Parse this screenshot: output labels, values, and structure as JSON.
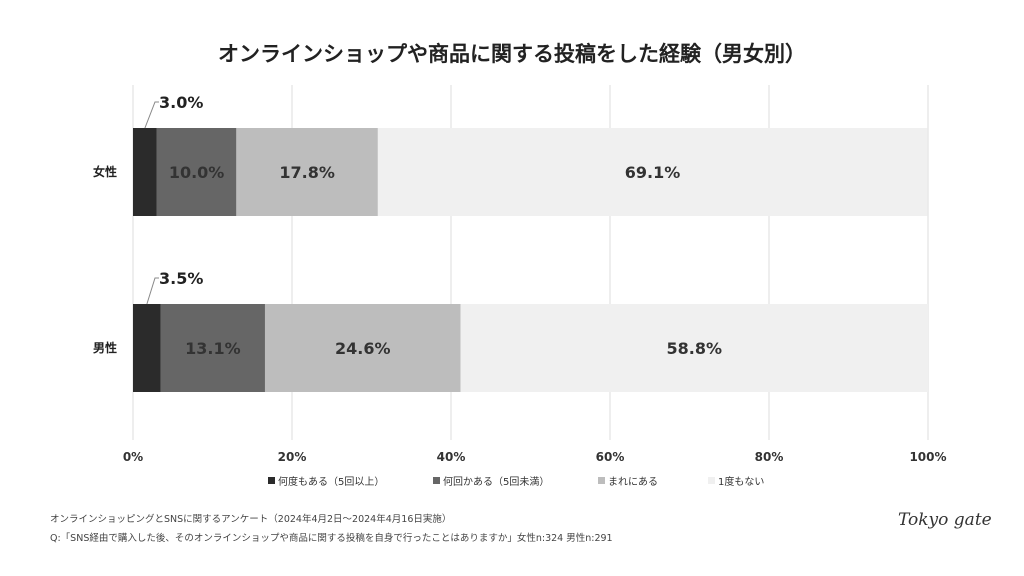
{
  "title": "オンラインショップや商品に関する投稿をした経験（男女別）",
  "chart_data": {
    "type": "bar",
    "orientation": "horizontal",
    "stacked": true,
    "categories": [
      "女性",
      "男性"
    ],
    "series": [
      {
        "name": "何度もある（5回以上）",
        "values": [
          3.0,
          3.5
        ],
        "color": "#2b2b2b"
      },
      {
        "name": "何回かある（5回未満）",
        "values": [
          10.0,
          13.1
        ],
        "color": "#666666"
      },
      {
        "name": "まれにある",
        "values": [
          17.8,
          24.6
        ],
        "color": "#bdbdbd"
      },
      {
        "name": "1度もない",
        "values": [
          69.1,
          58.8
        ],
        "color": "#f0f0f0"
      }
    ],
    "data_labels": [
      [
        "3.0%",
        "10.0%",
        "17.8%",
        "69.1%"
      ],
      [
        "3.5%",
        "13.1%",
        "24.6%",
        "58.8%"
      ]
    ],
    "xlim": [
      0,
      100
    ],
    "x_ticks": [
      "0%",
      "20%",
      "40%",
      "60%",
      "80%",
      "100%"
    ],
    "grid": true,
    "legend": "bottom"
  },
  "notes": {
    "survey": "オンラインショッピングとSNSに関するアンケート（2024年4月2日〜2024年4月16日実施）",
    "question": "Q:「SNS経由で購入した後、そのオンラインショップや商品に関する投稿を自身で行ったことはありますか」女性n:324 男性n:291"
  },
  "logo": "Tokyo gate"
}
